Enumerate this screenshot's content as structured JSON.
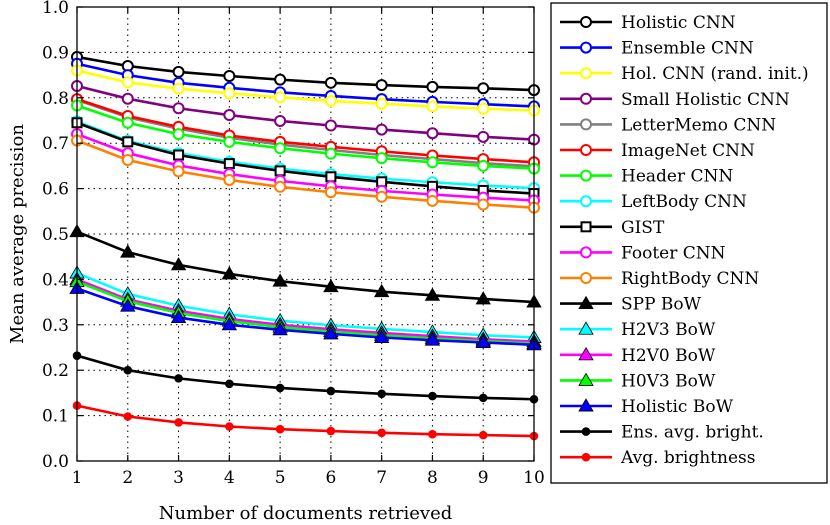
{
  "chart_data": {
    "type": "line",
    "xlabel": "Number of documents retrieved",
    "ylabel": "Mean average precision",
    "xlim": [
      1,
      10
    ],
    "ylim": [
      0.0,
      1.0
    ],
    "x": [
      1,
      2,
      3,
      4,
      5,
      6,
      7,
      8,
      9,
      10
    ],
    "x_ticks": [
      "1",
      "2",
      "3",
      "4",
      "5",
      "6",
      "7",
      "8",
      "9",
      "10"
    ],
    "y_ticks": [
      "0.0",
      "0.1",
      "0.2",
      "0.3",
      "0.4",
      "0.5",
      "0.6",
      "0.7",
      "0.8",
      "0.9",
      "1.0"
    ],
    "grid": true,
    "legend_position": "right",
    "series": [
      {
        "name": "Holistic CNN",
        "color": "#000000",
        "marker": "circle-open",
        "values": [
          0.89,
          0.87,
          0.857,
          0.848,
          0.84,
          0.833,
          0.828,
          0.824,
          0.821,
          0.817
        ]
      },
      {
        "name": "Ensemble CNN",
        "color": "#0000ff",
        "marker": "circle-open",
        "values": [
          0.875,
          0.85,
          0.833,
          0.822,
          0.812,
          0.804,
          0.797,
          0.791,
          0.786,
          0.781
        ]
      },
      {
        "name": "Hol. CNN (rand. init.)",
        "color": "#ffff00",
        "marker": "circle-open",
        "values": [
          0.86,
          0.834,
          0.82,
          0.81,
          0.801,
          0.793,
          0.787,
          0.781,
          0.776,
          0.772
        ]
      },
      {
        "name": "Small Holistic CNN",
        "color": "#800080",
        "marker": "circle-open",
        "values": [
          0.826,
          0.798,
          0.777,
          0.762,
          0.749,
          0.739,
          0.73,
          0.722,
          0.714,
          0.708
        ]
      },
      {
        "name": "LetterMemo CNN",
        "color": "#808080",
        "marker": "circle-open",
        "values": [
          0.795,
          0.757,
          0.732,
          0.712,
          0.697,
          0.685,
          0.674,
          0.665,
          0.656,
          0.649
        ]
      },
      {
        "name": "ImageNet CNN",
        "color": "#ff0000",
        "marker": "circle-open",
        "values": [
          0.797,
          0.76,
          0.736,
          0.717,
          0.703,
          0.692,
          0.682,
          0.673,
          0.665,
          0.658
        ]
      },
      {
        "name": "Header CNN",
        "color": "#00ff00",
        "marker": "circle-open",
        "values": [
          0.783,
          0.745,
          0.72,
          0.703,
          0.689,
          0.677,
          0.667,
          0.658,
          0.65,
          0.644
        ]
      },
      {
        "name": "LeftBody CNN",
        "color": "#00ffff",
        "marker": "circle-open",
        "values": [
          0.748,
          0.705,
          0.678,
          0.659,
          0.644,
          0.632,
          0.622,
          0.614,
          0.607,
          0.601
        ]
      },
      {
        "name": "GIST",
        "color": "#000000",
        "marker": "square-open",
        "values": [
          0.745,
          0.703,
          0.674,
          0.655,
          0.639,
          0.626,
          0.615,
          0.605,
          0.596,
          0.589
        ]
      },
      {
        "name": "Footer CNN",
        "color": "#ff00ff",
        "marker": "circle-open",
        "values": [
          0.72,
          0.678,
          0.651,
          0.632,
          0.617,
          0.605,
          0.595,
          0.587,
          0.58,
          0.574
        ]
      },
      {
        "name": "RightBody CNN",
        "color": "#ff8000",
        "marker": "circle-open",
        "values": [
          0.706,
          0.663,
          0.638,
          0.619,
          0.604,
          0.592,
          0.582,
          0.573,
          0.565,
          0.558
        ]
      },
      {
        "name": "SPP BoW",
        "color": "#000000",
        "marker": "triangle",
        "values": [
          0.505,
          0.46,
          0.432,
          0.412,
          0.396,
          0.384,
          0.373,
          0.365,
          0.357,
          0.35
        ]
      },
      {
        "name": "H2V3 BoW",
        "color": "#00ffff",
        "marker": "triangle",
        "values": [
          0.414,
          0.368,
          0.342,
          0.323,
          0.309,
          0.299,
          0.291,
          0.284,
          0.277,
          0.272
        ]
      },
      {
        "name": "H2V0 BoW",
        "color": "#ff00ff",
        "marker": "triangle",
        "values": [
          0.4,
          0.356,
          0.331,
          0.313,
          0.3,
          0.29,
          0.282,
          0.275,
          0.268,
          0.263
        ]
      },
      {
        "name": "H0V3 BoW",
        "color": "#00ff00",
        "marker": "triangle",
        "values": [
          0.395,
          0.352,
          0.326,
          0.308,
          0.295,
          0.285,
          0.277,
          0.27,
          0.264,
          0.259
        ]
      },
      {
        "name": "Holistic BoW",
        "color": "#0000ff",
        "marker": "triangle",
        "values": [
          0.38,
          0.341,
          0.316,
          0.3,
          0.289,
          0.28,
          0.272,
          0.266,
          0.261,
          0.256
        ]
      },
      {
        "name": "Ens. avg. bright.",
        "color": "#000000",
        "marker": "dot",
        "values": [
          0.232,
          0.2,
          0.182,
          0.17,
          0.161,
          0.154,
          0.148,
          0.143,
          0.139,
          0.136
        ]
      },
      {
        "name": "Avg. brightness",
        "color": "#ff0000",
        "marker": "dot",
        "values": [
          0.122,
          0.098,
          0.085,
          0.076,
          0.07,
          0.066,
          0.062,
          0.059,
          0.057,
          0.055
        ]
      }
    ]
  }
}
